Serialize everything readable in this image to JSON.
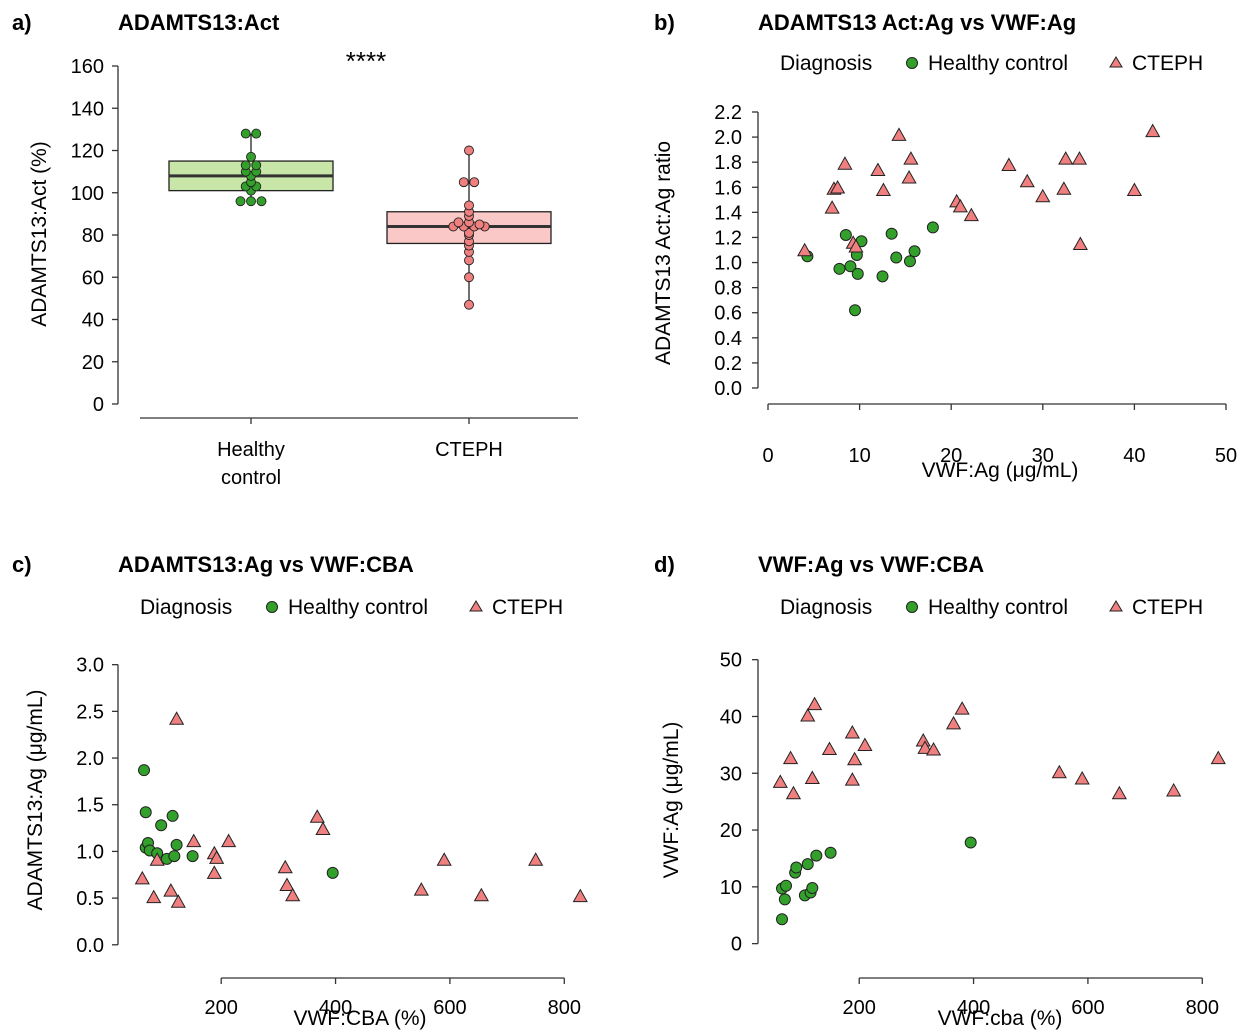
{
  "colors": {
    "healthy": "#33a02c",
    "cteph": "#f08080",
    "healthy_box": "#c7e6a8",
    "cteph_box": "#fbc8c8",
    "outline": "#222222"
  },
  "legend": {
    "title": "Diagnosis",
    "items": [
      "Healthy control",
      "CTEPH"
    ]
  },
  "chart_data": [
    {
      "label": "a)",
      "type": "box",
      "title": "ADAMTS13:Act",
      "xlabel": "",
      "ylabel": "ADAMTS13:Act (%)",
      "ylim": [
        0,
        160
      ],
      "yticks": [
        0,
        20,
        40,
        60,
        80,
        100,
        120,
        140,
        160
      ],
      "categories": [
        "Healthy\ncontrol",
        "CTEPH"
      ],
      "significance": "****",
      "boxes": [
        {
          "name": "Healthy control",
          "q1": 101,
          "median": 108,
          "q3": 115,
          "whisker_low": 95,
          "whisker_high": 128,
          "points": [
            128,
            128,
            117,
            113,
            113,
            110,
            110,
            108,
            105,
            103,
            103,
            101,
            96,
            96,
            96
          ]
        },
        {
          "name": "CTEPH",
          "q1": 76,
          "median": 84,
          "q3": 91,
          "whisker_low": 47,
          "whisker_high": 120,
          "points": [
            120,
            105,
            105,
            94,
            91,
            89,
            86,
            86,
            85,
            84,
            84,
            84,
            84,
            81,
            80,
            77,
            75,
            72,
            68,
            60,
            47
          ]
        }
      ]
    },
    {
      "label": "b)",
      "type": "scatter",
      "title": "ADAMTS13 Act:Ag vs VWF:Ag",
      "xlabel": "VWF:Ag (μg/mL)",
      "ylabel": "ADAMTS13 Act:Ag ratio",
      "xlim": [
        0,
        50
      ],
      "ylim": [
        0,
        2.2
      ],
      "xticks": [
        0,
        10,
        20,
        30,
        40,
        50
      ],
      "yticks": [
        0.0,
        0.2,
        0.4,
        0.6,
        0.8,
        1.0,
        1.2,
        1.4,
        1.6,
        1.8,
        2.0,
        2.2
      ],
      "series": [
        {
          "name": "Healthy control",
          "marker": "circle",
          "points": [
            [
              4.3,
              1.05
            ],
            [
              7.8,
              0.95
            ],
            [
              8.5,
              1.22
            ],
            [
              9,
              0.97
            ],
            [
              9.5,
              0.62
            ],
            [
              9.7,
              1.06
            ],
            [
              9.8,
              0.91
            ],
            [
              10.2,
              1.17
            ],
            [
              12.5,
              0.89
            ],
            [
              13.5,
              1.23
            ],
            [
              14,
              1.04
            ],
            [
              15.5,
              1.01
            ],
            [
              16,
              1.09
            ],
            [
              18,
              1.28
            ]
          ]
        },
        {
          "name": "CTEPH",
          "marker": "triangle",
          "points": [
            [
              4,
              1.09
            ],
            [
              7,
              1.43
            ],
            [
              7.2,
              1.58
            ],
            [
              7.6,
              1.59
            ],
            [
              8.4,
              1.78
            ],
            [
              9.3,
              1.15
            ],
            [
              9.6,
              1.12
            ],
            [
              12,
              1.73
            ],
            [
              12.6,
              1.57
            ],
            [
              14.3,
              2.01
            ],
            [
              15.4,
              1.67
            ],
            [
              15.6,
              1.82
            ],
            [
              20.6,
              1.48
            ],
            [
              21,
              1.44
            ],
            [
              22.2,
              1.37
            ],
            [
              26.3,
              1.77
            ],
            [
              28.3,
              1.64
            ],
            [
              30,
              1.52
            ],
            [
              32.3,
              1.58
            ],
            [
              32.5,
              1.82
            ],
            [
              34,
              1.82
            ],
            [
              34.1,
              1.14
            ],
            [
              40,
              1.57
            ],
            [
              42,
              2.04
            ]
          ]
        }
      ]
    },
    {
      "label": "c)",
      "type": "scatter",
      "title": "ADAMTS13:Ag vs VWF:CBA",
      "xlabel": "VWF:CBA (%)",
      "ylabel": "ADAMTS13:Ag (μg/mL)",
      "xlim": [
        30,
        845
      ],
      "ylim": [
        -0.12,
        3.05
      ],
      "xticks": [
        200,
        400,
        600,
        800
      ],
      "yticks": [
        0.0,
        0.5,
        1.0,
        1.5,
        2.0,
        2.5,
        3.0
      ],
      "series": [
        {
          "name": "Healthy control",
          "marker": "circle",
          "points": [
            [
              65,
              1.87
            ],
            [
              68,
              1.42
            ],
            [
              68,
              1.04
            ],
            [
              72,
              1.09
            ],
            [
              75,
              1.01
            ],
            [
              88,
              0.98
            ],
            [
              95,
              1.28
            ],
            [
              105,
              0.92
            ],
            [
              115,
              1.38
            ],
            [
              118,
              0.95
            ],
            [
              122,
              1.07
            ],
            [
              150,
              0.95
            ],
            [
              395,
              0.77
            ]
          ]
        },
        {
          "name": "CTEPH",
          "marker": "triangle",
          "points": [
            [
              62,
              0.7
            ],
            [
              82,
              0.5
            ],
            [
              88,
              0.9
            ],
            [
              112,
              0.57
            ],
            [
              122,
              2.41
            ],
            [
              125,
              0.45
            ],
            [
              152,
              1.1
            ],
            [
              188,
              0.97
            ],
            [
              188,
              0.76
            ],
            [
              192,
              0.92
            ],
            [
              213,
              1.1
            ],
            [
              312,
              0.82
            ],
            [
              315,
              0.63
            ],
            [
              325,
              0.52
            ],
            [
              368,
              1.36
            ],
            [
              378,
              1.23
            ],
            [
              550,
              0.58
            ],
            [
              590,
              0.9
            ],
            [
              655,
              0.52
            ],
            [
              750,
              0.9
            ],
            [
              828,
              0.51
            ]
          ]
        }
      ]
    },
    {
      "label": "d)",
      "type": "scatter",
      "title": "VWF:Ag vs VWF:CBA",
      "xlabel": "VWF:cba (%)",
      "ylabel": "VWF:Ag (μg/mL)",
      "xlim": [
        30,
        845
      ],
      "ylim": [
        -2,
        51
      ],
      "xticks": [
        200,
        400,
        600,
        800
      ],
      "yticks": [
        0,
        10,
        20,
        30,
        40,
        50
      ],
      "series": [
        {
          "name": "Healthy control",
          "marker": "circle",
          "points": [
            [
              65,
              4.3
            ],
            [
              65,
              9.7
            ],
            [
              70,
              7.8
            ],
            [
              72,
              10.2
            ],
            [
              88,
              12.5
            ],
            [
              90,
              13.4
            ],
            [
              105,
              8.5
            ],
            [
              110,
              14
            ],
            [
              115,
              9
            ],
            [
              118,
              9.8
            ],
            [
              125,
              15.5
            ],
            [
              150,
              16
            ],
            [
              395,
              17.8
            ]
          ]
        },
        {
          "name": "CTEPH",
          "marker": "triangle",
          "points": [
            [
              62,
              28.3
            ],
            [
              80,
              32.5
            ],
            [
              85,
              26.3
            ],
            [
              110,
              40
            ],
            [
              118,
              29
            ],
            [
              122,
              42
            ],
            [
              148,
              34.1
            ],
            [
              188,
              37
            ],
            [
              188,
              28.7
            ],
            [
              192,
              32.3
            ],
            [
              210,
              34.8
            ],
            [
              312,
              35.6
            ],
            [
              315,
              34.3
            ],
            [
              330,
              34
            ],
            [
              365,
              38.6
            ],
            [
              380,
              41.2
            ],
            [
              550,
              30
            ],
            [
              590,
              28.9
            ],
            [
              655,
              26.3
            ],
            [
              750,
              26.8
            ],
            [
              828,
              32.5
            ]
          ]
        }
      ]
    }
  ]
}
